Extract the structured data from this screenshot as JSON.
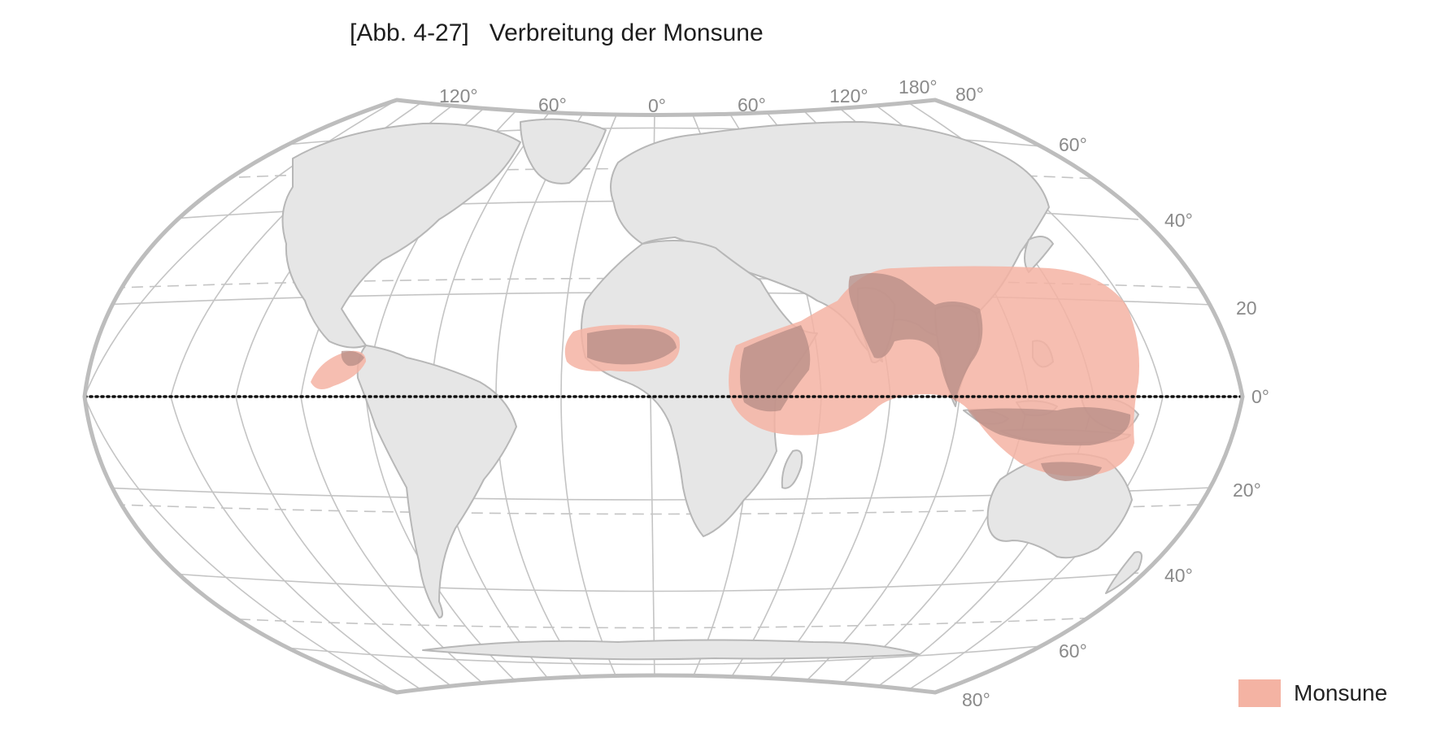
{
  "title": "[Abb. 4-27]   Verbreitung der Monsune",
  "top_labels": [
    "120°",
    "60°",
    "0°",
    "60°",
    "120°",
    "180°",
    "80°"
  ],
  "right_labels": [
    "60°",
    "40°",
    "20",
    "0°",
    "20°",
    "40°",
    "60°",
    "80°"
  ],
  "legend": {
    "label": "Monsune",
    "color": "#f4b3a3"
  },
  "colors": {
    "land": "#e6e6e6",
    "coast": "#b7b7b7",
    "grid": "#c4c4c4",
    "frame": "#bdbdbd",
    "monsoon": "#f4b3a3",
    "monsoon_on_land": "#b58c86",
    "equator": "#111111"
  },
  "icons": [
    "world-map-graphic"
  ]
}
